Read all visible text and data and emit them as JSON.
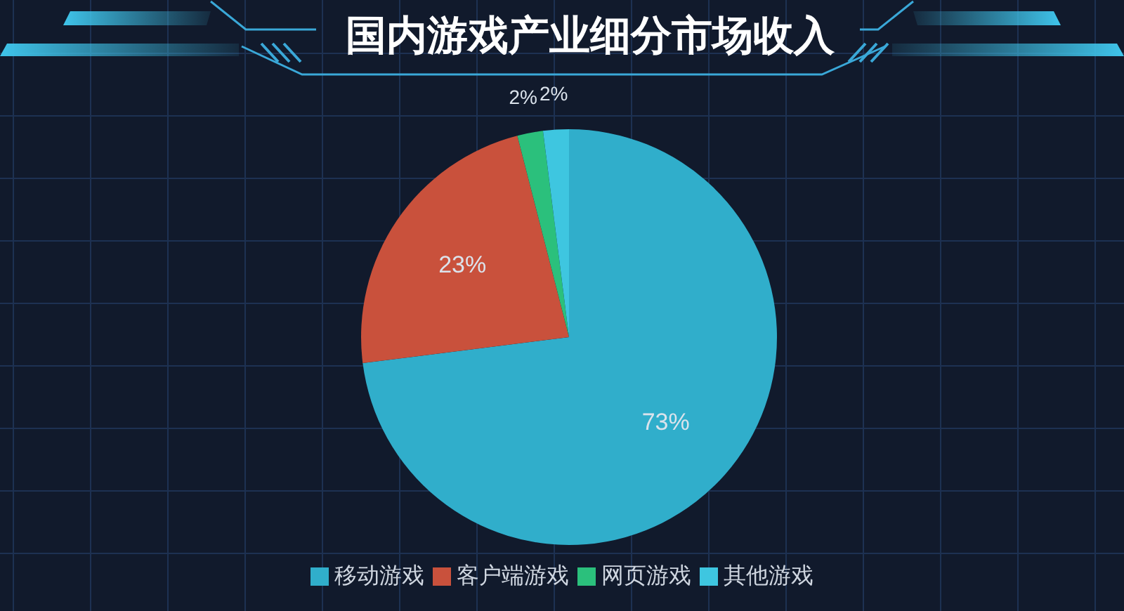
{
  "chart_data": {
    "type": "pie",
    "title": "国内游戏产业细分市场收入",
    "categories": [
      "移动游戏",
      "客户端游戏",
      "网页游戏",
      "其他游戏"
    ],
    "values": [
      73,
      23,
      2,
      2
    ],
    "colors": [
      "#30aecb",
      "#c9513c",
      "#2bc07c",
      "#3ec6e0"
    ],
    "value_labels": [
      "73%",
      "23%",
      "2%",
      "2%"
    ],
    "legend": "bottom"
  }
}
